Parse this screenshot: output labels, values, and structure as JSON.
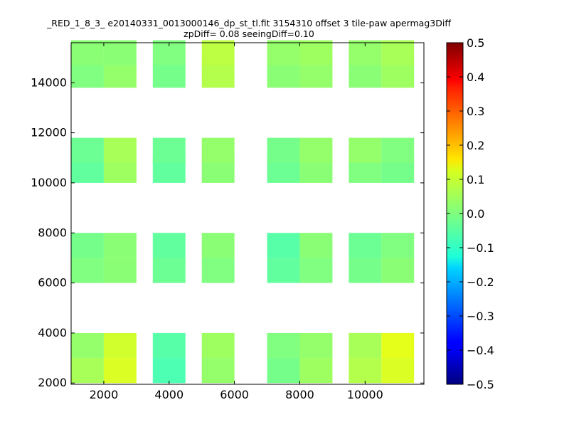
{
  "chart_data": {
    "type": "heatmap",
    "title": "_RED_1_8_3_ e20140331_0013000146_dp_st_tl.fit 3154310 offset 3 tile-paw apermag3Diff",
    "subtitle": "zpDiff= 0.08 seeingDiff=0.10",
    "xlim": [
      1000,
      11800
    ],
    "ylim": [
      1950,
      15600
    ],
    "x_ticks": [
      2000,
      4000,
      6000,
      8000,
      10000
    ],
    "y_ticks": [
      2000,
      4000,
      6000,
      8000,
      10000,
      12000,
      14000
    ],
    "colorbar": {
      "colormap": "jet",
      "range": [
        -0.5,
        0.5
      ],
      "ticks": [
        "0.5",
        "0.4",
        "0.3",
        "0.2",
        "0.1",
        "0.0",
        "−0.1",
        "−0.2",
        "−0.3",
        "−0.4",
        "−0.5"
      ]
    },
    "cell_size": [
      1000,
      1000
    ],
    "cells": [
      {
        "x": 1500,
        "y": 2500,
        "v": 0.04
      },
      {
        "x": 2500,
        "y": 2500,
        "v": 0.09
      },
      {
        "x": 4000,
        "y": 2500,
        "v": -0.05
      },
      {
        "x": 5500,
        "y": 2500,
        "v": 0.02
      },
      {
        "x": 7500,
        "y": 2500,
        "v": -0.01
      },
      {
        "x": 8500,
        "y": 2500,
        "v": 0.03
      },
      {
        "x": 10000,
        "y": 2500,
        "v": 0.05
      },
      {
        "x": 11000,
        "y": 2500,
        "v": 0.09
      },
      {
        "x": 1500,
        "y": 3500,
        "v": 0.02
      },
      {
        "x": 2500,
        "y": 3500,
        "v": 0.08
      },
      {
        "x": 4000,
        "y": 3500,
        "v": -0.04
      },
      {
        "x": 5500,
        "y": 3500,
        "v": 0.03
      },
      {
        "x": 7500,
        "y": 3500,
        "v": 0.0
      },
      {
        "x": 8500,
        "y": 3500,
        "v": 0.02
      },
      {
        "x": 10000,
        "y": 3500,
        "v": 0.04
      },
      {
        "x": 11000,
        "y": 3500,
        "v": 0.1
      },
      {
        "x": 1500,
        "y": 6500,
        "v": 0.0
      },
      {
        "x": 2500,
        "y": 6500,
        "v": 0.01
      },
      {
        "x": 4000,
        "y": 6500,
        "v": -0.02
      },
      {
        "x": 5500,
        "y": 6500,
        "v": 0.0
      },
      {
        "x": 7500,
        "y": 6500,
        "v": -0.03
      },
      {
        "x": 8500,
        "y": 6500,
        "v": 0.0
      },
      {
        "x": 10000,
        "y": 6500,
        "v": -0.01
      },
      {
        "x": 11000,
        "y": 6500,
        "v": 0.01
      },
      {
        "x": 1500,
        "y": 7500,
        "v": -0.01
      },
      {
        "x": 2500,
        "y": 7500,
        "v": 0.01
      },
      {
        "x": 4000,
        "y": 7500,
        "v": -0.03
      },
      {
        "x": 5500,
        "y": 7500,
        "v": 0.01
      },
      {
        "x": 7500,
        "y": 7500,
        "v": -0.04
      },
      {
        "x": 8500,
        "y": 7500,
        "v": 0.01
      },
      {
        "x": 10000,
        "y": 7500,
        "v": -0.02
      },
      {
        "x": 11000,
        "y": 7500,
        "v": 0.0
      },
      {
        "x": 1500,
        "y": 10500,
        "v": -0.03
      },
      {
        "x": 2500,
        "y": 10500,
        "v": 0.03
      },
      {
        "x": 4000,
        "y": 10500,
        "v": -0.03
      },
      {
        "x": 5500,
        "y": 10500,
        "v": 0.01
      },
      {
        "x": 7500,
        "y": 10500,
        "v": -0.02
      },
      {
        "x": 8500,
        "y": 10500,
        "v": 0.01
      },
      {
        "x": 10000,
        "y": 10500,
        "v": 0.0
      },
      {
        "x": 11000,
        "y": 10500,
        "v": -0.01
      },
      {
        "x": 1500,
        "y": 11300,
        "v": -0.02
      },
      {
        "x": 2500,
        "y": 11300,
        "v": 0.04
      },
      {
        "x": 4000,
        "y": 11300,
        "v": -0.02
      },
      {
        "x": 5500,
        "y": 11300,
        "v": 0.02
      },
      {
        "x": 7500,
        "y": 11300,
        "v": -0.01
      },
      {
        "x": 8500,
        "y": 11300,
        "v": 0.02
      },
      {
        "x": 10000,
        "y": 11300,
        "v": 0.02
      },
      {
        "x": 11000,
        "y": 11300,
        "v": 0.0
      },
      {
        "x": 1500,
        "y": 14300,
        "v": 0.0
      },
      {
        "x": 2500,
        "y": 14300,
        "v": 0.02
      },
      {
        "x": 4000,
        "y": 14300,
        "v": -0.01
      },
      {
        "x": 5500,
        "y": 14300,
        "v": 0.05
      },
      {
        "x": 7500,
        "y": 14300,
        "v": 0.01
      },
      {
        "x": 8500,
        "y": 14300,
        "v": 0.02
      },
      {
        "x": 10000,
        "y": 14300,
        "v": 0.01
      },
      {
        "x": 11000,
        "y": 14300,
        "v": 0.03
      },
      {
        "x": 1500,
        "y": 15200,
        "v": 0.01
      },
      {
        "x": 2500,
        "y": 15200,
        "v": 0.01
      },
      {
        "x": 4000,
        "y": 15200,
        "v": 0.0
      },
      {
        "x": 5500,
        "y": 15200,
        "v": 0.06
      },
      {
        "x": 7500,
        "y": 15200,
        "v": 0.02
      },
      {
        "x": 8500,
        "y": 15200,
        "v": 0.03
      },
      {
        "x": 10000,
        "y": 15200,
        "v": 0.02
      },
      {
        "x": 11000,
        "y": 15200,
        "v": 0.04
      }
    ]
  }
}
